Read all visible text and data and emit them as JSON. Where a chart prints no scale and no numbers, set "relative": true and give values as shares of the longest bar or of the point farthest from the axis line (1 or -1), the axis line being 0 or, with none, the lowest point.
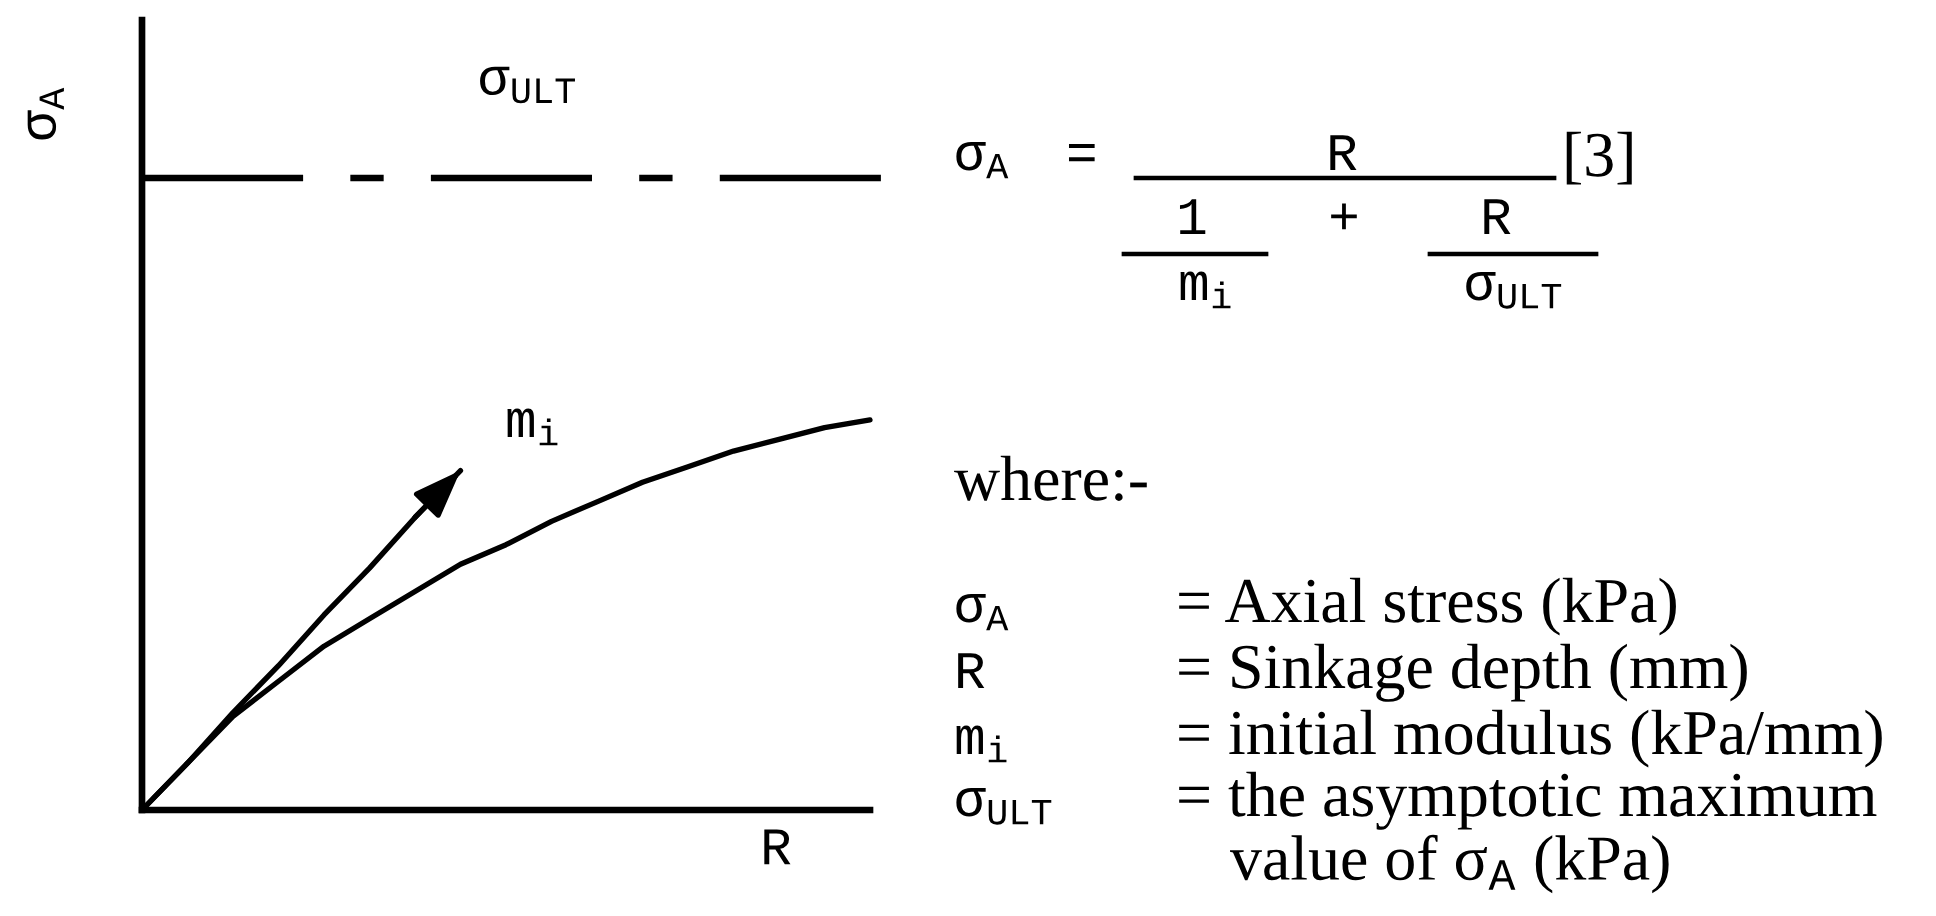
{
  "chart_data": {
    "type": "line",
    "relative": true,
    "xlabel": "R",
    "categories": [
      null,
      null,
      null,
      null,
      null,
      null,
      null,
      null,
      null,
      null,
      null,
      null,
      null,
      null,
      null,
      null,
      null
    ],
    "series": [
      {
        "color": "#000000",
        "values": [
          0,
          0.12,
          0.24,
          0.33,
          0.42,
          0.49,
          0.56,
          0.63,
          0.68,
          0.74,
          0.79,
          0.84,
          0.88,
          0.92,
          0.95,
          0.98,
          1
        ]
      },
      {
        "name": "m$_{i}$",
        "color": "#000000",
        "values": [
          0,
          0.12,
          0.25,
          0.37,
          0.5,
          0.62,
          0.75,
          0.87,
          null,
          null,
          null,
          null,
          null,
          null,
          null,
          null,
          null
        ]
      }
    ],
    "ref_lines": [
      {
        "axis": "y",
        "value": 1.62,
        "label": "σ$_{ULT}$",
        "color": "#000000",
        "line_style": "dashed"
      }
    ],
    "annotations": [
      "σ$_{A}$",
      "σ$_{A}$",
      "=",
      "R",
      "1",
      "m$_{i}$",
      "+",
      "R",
      "σ$_{ULT}$",
      "[3]",
      "where:-",
      "σ$_{A}$",
      "R",
      "m$_{i}$",
      "σ$_{ULT}$",
      "= Axial stress (kPa)",
      "= Sinkage depth (mm)",
      "= initial modulus (kPa/mm)",
      "= the asymptotic maximum",
      "value of σ$_{A}$ (kPa)"
    ],
    "line_style": "solid",
    "marker": "none",
    "grid": false,
    "legend": false
  }
}
